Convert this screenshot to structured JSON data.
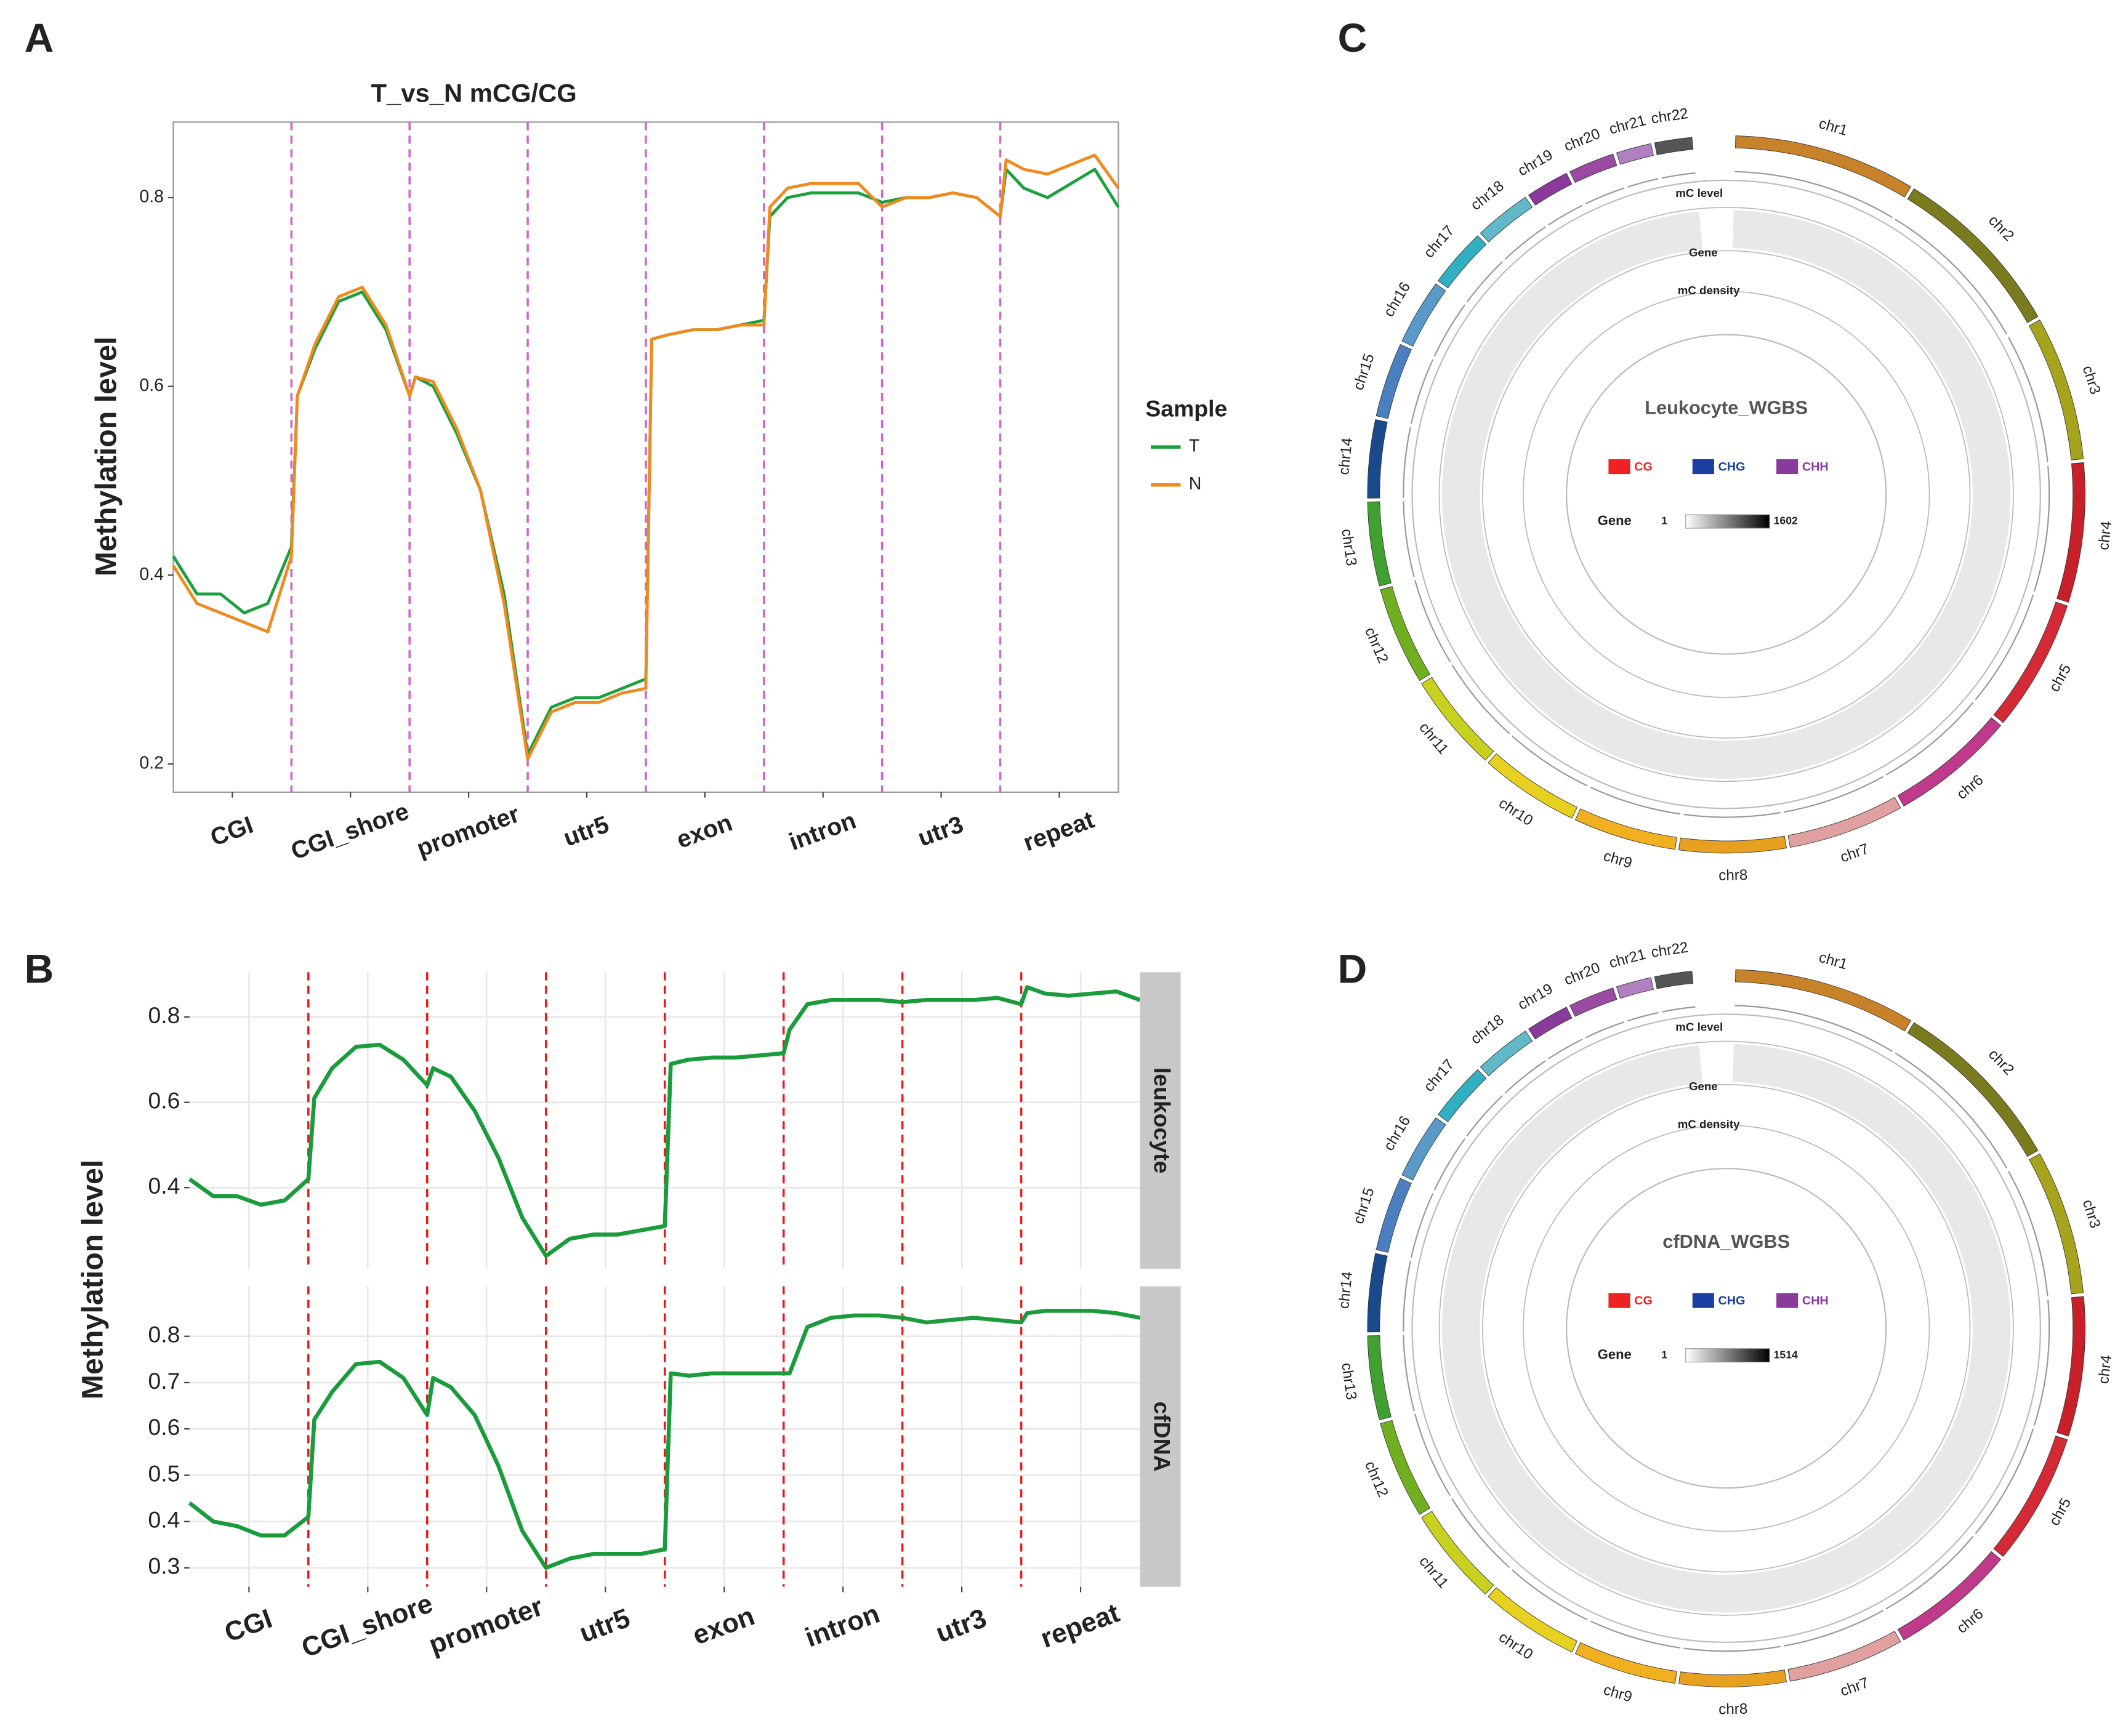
{
  "chart_data": [
    {
      "type": "line",
      "label": "A",
      "title": "T_vs_N mCG/CG",
      "ylabel": "Methylation level",
      "categories": [
        "CGI",
        "CGI_shore",
        "promoter",
        "utr5",
        "exon",
        "intron",
        "utr3",
        "repeat"
      ],
      "x": [
        0,
        0.2,
        0.4,
        0.6,
        0.8,
        1,
        1.05,
        1.2,
        1.4,
        1.6,
        1.8,
        2,
        2.05,
        2.2,
        2.4,
        2.6,
        2.8,
        3,
        3.2,
        3.4,
        3.6,
        3.8,
        4,
        4.05,
        4.2,
        4.4,
        4.6,
        4.8,
        5,
        5.05,
        5.2,
        5.4,
        5.6,
        5.8,
        6,
        6.2,
        6.4,
        6.6,
        6.8,
        7,
        7.05,
        7.2,
        7.4,
        7.6,
        7.8,
        8
      ],
      "xlim": [
        0,
        8
      ],
      "ylim": [
        0.17,
        0.88
      ],
      "yticks": [
        0.2,
        0.4,
        0.6,
        0.8
      ],
      "legend_title": "Sample",
      "series": [
        {
          "name": "T",
          "color": "#1aa03c",
          "values": [
            0.42,
            0.38,
            0.38,
            0.36,
            0.37,
            0.43,
            0.59,
            0.64,
            0.69,
            0.7,
            0.66,
            0.59,
            0.61,
            0.6,
            0.55,
            0.49,
            0.38,
            0.21,
            0.26,
            0.27,
            0.27,
            0.28,
            0.29,
            0.65,
            0.655,
            0.66,
            0.66,
            0.665,
            0.67,
            0.78,
            0.8,
            0.805,
            0.805,
            0.805,
            0.795,
            0.8,
            0.8,
            0.805,
            0.8,
            0.78,
            0.83,
            0.81,
            0.8,
            0.815,
            0.83,
            0.79
          ]
        },
        {
          "name": "N",
          "color": "#f08a1e",
          "values": [
            0.41,
            0.37,
            0.36,
            0.35,
            0.34,
            0.42,
            0.59,
            0.645,
            0.695,
            0.705,
            0.665,
            0.59,
            0.61,
            0.605,
            0.555,
            0.49,
            0.37,
            0.205,
            0.255,
            0.265,
            0.265,
            0.275,
            0.28,
            0.65,
            0.655,
            0.66,
            0.66,
            0.665,
            0.665,
            0.79,
            0.81,
            0.815,
            0.815,
            0.815,
            0.79,
            0.8,
            0.8,
            0.805,
            0.8,
            0.78,
            0.84,
            0.83,
            0.825,
            0.835,
            0.845,
            0.81
          ]
        }
      ]
    },
    {
      "type": "line",
      "label": "B",
      "ylabel": "Methylation level",
      "categories": [
        "CGI",
        "CGI_shore",
        "promoter",
        "utr5",
        "exon",
        "intron",
        "utr3",
        "repeat"
      ],
      "x": [
        0,
        0.2,
        0.4,
        0.6,
        0.8,
        1,
        1.05,
        1.2,
        1.4,
        1.6,
        1.8,
        2,
        2.05,
        2.2,
        2.4,
        2.6,
        2.8,
        3,
        3.2,
        3.4,
        3.6,
        3.8,
        4,
        4.05,
        4.2,
        4.4,
        4.6,
        4.8,
        5,
        5.05,
        5.2,
        5.4,
        5.6,
        5.8,
        6,
        6.2,
        6.4,
        6.6,
        6.8,
        7,
        7.05,
        7.2,
        7.4,
        7.6,
        7.8,
        8
      ],
      "xlim": [
        0,
        8
      ],
      "facets": [
        {
          "strip": "leukocyte",
          "color": "#1a9c3c",
          "ylim": [
            0.21,
            0.905
          ],
          "yticks": [
            0.4,
            0.6,
            0.8
          ],
          "values": [
            0.42,
            0.38,
            0.38,
            0.36,
            0.37,
            0.42,
            0.61,
            0.68,
            0.73,
            0.735,
            0.7,
            0.64,
            0.68,
            0.66,
            0.58,
            0.47,
            0.33,
            0.24,
            0.28,
            0.29,
            0.29,
            0.3,
            0.31,
            0.69,
            0.7,
            0.705,
            0.705,
            0.71,
            0.715,
            0.77,
            0.83,
            0.84,
            0.84,
            0.84,
            0.835,
            0.84,
            0.84,
            0.84,
            0.845,
            0.83,
            0.87,
            0.855,
            0.85,
            0.855,
            0.86,
            0.84
          ]
        },
        {
          "strip": "cfDNA",
          "color": "#1a9c3c",
          "ylim": [
            0.259,
            0.908
          ],
          "yticks": [
            0.3,
            0.4,
            0.5,
            0.6,
            0.7,
            0.8
          ],
          "values": [
            0.44,
            0.4,
            0.39,
            0.37,
            0.37,
            0.41,
            0.62,
            0.68,
            0.74,
            0.745,
            0.71,
            0.63,
            0.71,
            0.69,
            0.63,
            0.52,
            0.38,
            0.3,
            0.32,
            0.33,
            0.33,
            0.33,
            0.34,
            0.72,
            0.715,
            0.72,
            0.72,
            0.72,
            0.72,
            0.72,
            0.82,
            0.84,
            0.845,
            0.845,
            0.84,
            0.83,
            0.835,
            0.84,
            0.835,
            0.83,
            0.85,
            0.855,
            0.855,
            0.855,
            0.85,
            0.84
          ]
        }
      ]
    },
    {
      "type": "circos",
      "label": "C",
      "title": "Leukocyte_WGBS",
      "tracks": [
        "mC level",
        "Gene",
        "mC density"
      ],
      "legend": [
        {
          "name": "CG",
          "color": "#ee2222"
        },
        {
          "name": "CHG",
          "color": "#1a3fa0"
        },
        {
          "name": "CHH",
          "color": "#8a3a9a"
        }
      ],
      "gene_label": "Gene",
      "gene_range": [
        1,
        1602
      ],
      "chromosomes": [
        {
          "name": "chr1",
          "size": 249,
          "color": "#c8822a"
        },
        {
          "name": "chr2",
          "size": 243,
          "color": "#7a7a1e"
        },
        {
          "name": "chr3",
          "size": 198,
          "color": "#a6a31c"
        },
        {
          "name": "chr4",
          "size": 191,
          "color": "#c8202a"
        },
        {
          "name": "chr5",
          "size": 181,
          "color": "#d42a35"
        },
        {
          "name": "chr6",
          "size": 171,
          "color": "#c03a8c"
        },
        {
          "name": "chr7",
          "size": 159,
          "color": "#e0a0a0"
        },
        {
          "name": "chr8",
          "size": 146,
          "color": "#e8a020"
        },
        {
          "name": "chr9",
          "size": 141,
          "color": "#f0b020"
        },
        {
          "name": "chr10",
          "size": 136,
          "color": "#e8d020"
        },
        {
          "name": "chr11",
          "size": 135,
          "color": "#c8d020"
        },
        {
          "name": "chr12",
          "size": 134,
          "color": "#70b020"
        },
        {
          "name": "chr13",
          "size": 115,
          "color": "#40a030"
        },
        {
          "name": "chr14",
          "size": 107,
          "color": "#1a4a8c"
        },
        {
          "name": "chr15",
          "size": 102,
          "color": "#4a80c0"
        },
        {
          "name": "chr16",
          "size": 90,
          "color": "#5a9ac8"
        },
        {
          "name": "chr17",
          "size": 81,
          "color": "#30b0c0"
        },
        {
          "name": "chr18",
          "size": 78,
          "color": "#60b8c8"
        },
        {
          "name": "chr19",
          "size": 59,
          "color": "#8a3a9a"
        },
        {
          "name": "chr20",
          "size": 63,
          "color": "#9a4aa0"
        },
        {
          "name": "chr21",
          "size": 48,
          "color": "#b080c0"
        },
        {
          "name": "chr22",
          "size": 51,
          "color": "#555555"
        }
      ]
    },
    {
      "type": "circos",
      "label": "D",
      "title": "cfDNA_WGBS",
      "tracks": [
        "mC level",
        "Gene",
        "mC density"
      ],
      "legend": [
        {
          "name": "CG",
          "color": "#ee2222"
        },
        {
          "name": "CHG",
          "color": "#1a3fa0"
        },
        {
          "name": "CHH",
          "color": "#8a3a9a"
        }
      ],
      "gene_label": "Gene",
      "gene_range": [
        1,
        1514
      ],
      "chromosomes": [
        {
          "name": "chr1",
          "size": 249,
          "color": "#c8822a"
        },
        {
          "name": "chr2",
          "size": 243,
          "color": "#7a7a1e"
        },
        {
          "name": "chr3",
          "size": 198,
          "color": "#a6a31c"
        },
        {
          "name": "chr4",
          "size": 191,
          "color": "#c8202a"
        },
        {
          "name": "chr5",
          "size": 181,
          "color": "#d42a35"
        },
        {
          "name": "chr6",
          "size": 171,
          "color": "#c03a8c"
        },
        {
          "name": "chr7",
          "size": 159,
          "color": "#e0a0a0"
        },
        {
          "name": "chr8",
          "size": 146,
          "color": "#e8a020"
        },
        {
          "name": "chr9",
          "size": 141,
          "color": "#f0b020"
        },
        {
          "name": "chr10",
          "size": 136,
          "color": "#e8d020"
        },
        {
          "name": "chr11",
          "size": 135,
          "color": "#c8d020"
        },
        {
          "name": "chr12",
          "size": 134,
          "color": "#70b020"
        },
        {
          "name": "chr13",
          "size": 115,
          "color": "#40a030"
        },
        {
          "name": "chr14",
          "size": 107,
          "color": "#1a4a8c"
        },
        {
          "name": "chr15",
          "size": 102,
          "color": "#4a80c0"
        },
        {
          "name": "chr16",
          "size": 90,
          "color": "#5a9ac8"
        },
        {
          "name": "chr17",
          "size": 81,
          "color": "#30b0c0"
        },
        {
          "name": "chr18",
          "size": 78,
          "color": "#60b8c8"
        },
        {
          "name": "chr19",
          "size": 59,
          "color": "#8a3a9a"
        },
        {
          "name": "chr20",
          "size": 63,
          "color": "#9a4aa0"
        },
        {
          "name": "chr21",
          "size": 48,
          "color": "#b080c0"
        },
        {
          "name": "chr22",
          "size": 51,
          "color": "#555555"
        }
      ]
    }
  ]
}
